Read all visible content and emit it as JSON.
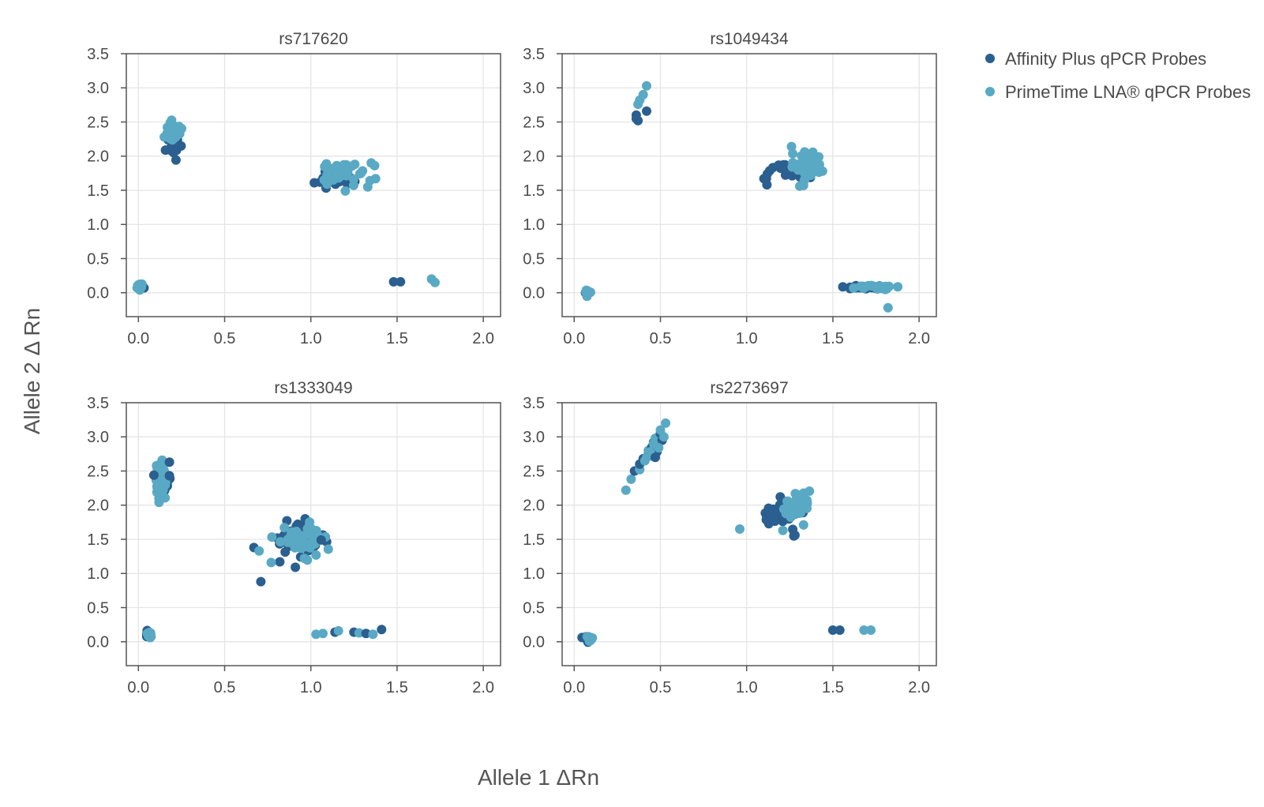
{
  "chart_data": {
    "type": "scatter",
    "xlabel": "Allele 1 ΔRn",
    "ylabel": "Allele 2 Δ Rn",
    "xlim": [
      -0.07,
      2.1
    ],
    "ylim": [
      -0.35,
      3.5
    ],
    "xticks": [
      "0.0",
      "0.5",
      "1.0",
      "1.5",
      "2.0"
    ],
    "yticks": [
      "3.5",
      "3.0",
      "2.5",
      "2.0",
      "1.5",
      "1.0",
      "0.5",
      "0.0"
    ],
    "grid": true,
    "legend_position": "top-right",
    "series": [
      {
        "name": "Affinity Plus qPCR Probes",
        "color": "#2a5f8f"
      },
      {
        "name": "PrimeTime LNA® qPCR Probes",
        "color": "#59a9c4"
      }
    ],
    "panels": [
      {
        "title": "rs717620",
        "clusters": [
          {
            "series": 0,
            "cx": 0.01,
            "cy": 0.09,
            "sx": 0.008,
            "sy": 0.03,
            "n": 10
          },
          {
            "series": 1,
            "cx": 0.01,
            "cy": 0.1,
            "sx": 0.008,
            "sy": 0.03,
            "n": 10
          },
          {
            "series": 0,
            "cx": 0.21,
            "cy": 2.17,
            "sx": 0.02,
            "sy": 0.09,
            "n": 32
          },
          {
            "series": 1,
            "cx": 0.2,
            "cy": 2.37,
            "sx": 0.02,
            "sy": 0.07,
            "n": 32
          },
          {
            "series": 0,
            "cx": 1.16,
            "cy": 1.7,
            "sx": 0.06,
            "sy": 0.06,
            "n": 26
          },
          {
            "series": 1,
            "cx": 1.21,
            "cy": 1.74,
            "sx": 0.06,
            "sy": 0.08,
            "n": 30
          }
        ],
        "points": [
          {
            "series": 0,
            "x": 1.48,
            "y": 0.16
          },
          {
            "series": 0,
            "x": 1.52,
            "y": 0.16
          },
          {
            "series": 1,
            "x": 1.7,
            "y": 0.2
          },
          {
            "series": 1,
            "x": 1.72,
            "y": 0.15
          },
          {
            "series": 1,
            "x": 1.35,
            "y": 1.9
          },
          {
            "series": 1,
            "x": 1.37,
            "y": 1.86
          },
          {
            "series": 0,
            "x": 1.02,
            "y": 1.61
          },
          {
            "series": 1,
            "x": 1.15,
            "y": 1.86
          },
          {
            "series": 1,
            "x": 1.2,
            "y": 1.49
          },
          {
            "series": 1,
            "x": 1.33,
            "y": 1.55
          },
          {
            "series": 1,
            "x": 0.15,
            "y": 2.28
          }
        ]
      },
      {
        "title": "rs1049434",
        "clusters": [
          {
            "series": 0,
            "cx": 0.08,
            "cy": 0.0,
            "sx": 0.01,
            "sy": 0.02,
            "n": 10
          },
          {
            "series": 1,
            "cx": 0.08,
            "cy": 0.01,
            "sx": 0.01,
            "sy": 0.02,
            "n": 10
          },
          {
            "series": 0,
            "cx": 1.25,
            "cy": 1.78,
            "sx": 0.07,
            "sy": 0.07,
            "n": 34
          },
          {
            "series": 1,
            "cx": 1.35,
            "cy": 1.87,
            "sx": 0.05,
            "sy": 0.1,
            "n": 36
          },
          {
            "series": 0,
            "cx": 1.7,
            "cy": 0.08,
            "sx": 0.06,
            "sy": 0.012,
            "n": 24
          },
          {
            "series": 1,
            "cx": 1.74,
            "cy": 0.08,
            "sx": 0.05,
            "sy": 0.015,
            "n": 24
          }
        ],
        "points": [
          {
            "series": 0,
            "x": 0.36,
            "y": 2.6
          },
          {
            "series": 0,
            "x": 0.37,
            "y": 2.52
          },
          {
            "series": 0,
            "x": 0.36,
            "y": 2.55
          },
          {
            "series": 0,
            "x": 0.42,
            "y": 2.66
          },
          {
            "series": 1,
            "x": 0.37,
            "y": 2.76
          },
          {
            "series": 1,
            "x": 0.38,
            "y": 2.82
          },
          {
            "series": 1,
            "x": 0.4,
            "y": 2.9
          },
          {
            "series": 1,
            "x": 0.42,
            "y": 3.03
          },
          {
            "series": 1,
            "x": 1.82,
            "y": -0.22
          },
          {
            "series": 1,
            "x": 1.26,
            "y": 2.14
          },
          {
            "series": 1,
            "x": 1.33,
            "y": 1.57
          },
          {
            "series": 0,
            "x": 1.1,
            "y": 1.67
          },
          {
            "series": 0,
            "x": 1.12,
            "y": 1.74
          },
          {
            "series": 1,
            "x": 1.62,
            "y": 0.07
          },
          {
            "series": 1,
            "x": 1.44,
            "y": 1.78
          }
        ]
      },
      {
        "title": "rs1333049",
        "clusters": [
          {
            "series": 0,
            "cx": 0.06,
            "cy": 0.1,
            "sx": 0.008,
            "sy": 0.03,
            "n": 10
          },
          {
            "series": 1,
            "cx": 0.06,
            "cy": 0.11,
            "sx": 0.008,
            "sy": 0.03,
            "n": 10
          },
          {
            "series": 0,
            "cx": 0.14,
            "cy": 2.35,
            "sx": 0.02,
            "sy": 0.1,
            "n": 22
          },
          {
            "series": 1,
            "cx": 0.13,
            "cy": 2.35,
            "sx": 0.015,
            "sy": 0.13,
            "n": 30
          },
          {
            "series": 0,
            "cx": 0.93,
            "cy": 1.5,
            "sx": 0.07,
            "sy": 0.12,
            "n": 40
          },
          {
            "series": 1,
            "cx": 0.93,
            "cy": 1.53,
            "sx": 0.07,
            "sy": 0.1,
            "n": 45
          }
        ],
        "points": [
          {
            "series": 0,
            "x": 0.18,
            "y": 2.63
          },
          {
            "series": 0,
            "x": 0.71,
            "y": 0.88
          },
          {
            "series": 0,
            "x": 0.67,
            "y": 1.38
          },
          {
            "series": 1,
            "x": 0.7,
            "y": 1.33
          },
          {
            "series": 0,
            "x": 0.82,
            "y": 1.17
          },
          {
            "series": 1,
            "x": 0.77,
            "y": 1.16
          },
          {
            "series": 0,
            "x": 0.91,
            "y": 1.09
          },
          {
            "series": 0,
            "x": 1.06,
            "y": 1.49
          },
          {
            "series": 1,
            "x": 1.03,
            "y": 1.27
          },
          {
            "series": 1,
            "x": 1.03,
            "y": 0.11
          },
          {
            "series": 1,
            "x": 1.07,
            "y": 0.12
          },
          {
            "series": 0,
            "x": 1.14,
            "y": 0.14
          },
          {
            "series": 1,
            "x": 1.16,
            "y": 0.16
          },
          {
            "series": 0,
            "x": 1.25,
            "y": 0.14
          },
          {
            "series": 1,
            "x": 1.28,
            "y": 0.13
          },
          {
            "series": 0,
            "x": 1.32,
            "y": 0.12
          },
          {
            "series": 1,
            "x": 1.36,
            "y": 0.11
          },
          {
            "series": 0,
            "x": 1.41,
            "y": 0.18
          },
          {
            "series": 1,
            "x": 0.12,
            "y": 2.04
          },
          {
            "series": 0,
            "x": 0.18,
            "y": 2.43
          },
          {
            "series": 0,
            "x": 0.09,
            "y": 2.44
          }
        ]
      },
      {
        "title": "rs2273697",
        "clusters": [
          {
            "series": 0,
            "cx": 0.08,
            "cy": 0.04,
            "sx": 0.01,
            "sy": 0.03,
            "n": 10
          },
          {
            "series": 1,
            "cx": 0.09,
            "cy": 0.05,
            "sx": 0.01,
            "sy": 0.03,
            "n": 10
          },
          {
            "series": 0,
            "cx": 1.2,
            "cy": 1.87,
            "sx": 0.05,
            "sy": 0.1,
            "n": 36
          },
          {
            "series": 1,
            "cx": 1.29,
            "cy": 2.0,
            "sx": 0.04,
            "sy": 0.08,
            "n": 40
          }
        ],
        "points": [
          {
            "series": 1,
            "x": 0.3,
            "y": 2.22
          },
          {
            "series": 1,
            "x": 0.33,
            "y": 2.38
          },
          {
            "series": 0,
            "x": 0.35,
            "y": 2.5
          },
          {
            "series": 1,
            "x": 0.38,
            "y": 2.52
          },
          {
            "series": 0,
            "x": 0.38,
            "y": 2.6
          },
          {
            "series": 0,
            "x": 0.4,
            "y": 2.68
          },
          {
            "series": 1,
            "x": 0.41,
            "y": 2.65
          },
          {
            "series": 0,
            "x": 0.43,
            "y": 2.75
          },
          {
            "series": 1,
            "x": 0.43,
            "y": 2.8
          },
          {
            "series": 0,
            "x": 0.45,
            "y": 2.85
          },
          {
            "series": 1,
            "x": 0.45,
            "y": 2.72
          },
          {
            "series": 0,
            "x": 0.46,
            "y": 2.92
          },
          {
            "series": 1,
            "x": 0.47,
            "y": 2.98
          },
          {
            "series": 0,
            "x": 0.48,
            "y": 2.78
          },
          {
            "series": 1,
            "x": 0.48,
            "y": 2.88
          },
          {
            "series": 0,
            "x": 0.5,
            "y": 3.05
          },
          {
            "series": 1,
            "x": 0.5,
            "y": 3.1
          },
          {
            "series": 0,
            "x": 0.51,
            "y": 2.95
          },
          {
            "series": 1,
            "x": 0.52,
            "y": 3.0
          },
          {
            "series": 1,
            "x": 0.53,
            "y": 3.2
          },
          {
            "series": 1,
            "x": 0.44,
            "y": 2.78
          },
          {
            "series": 1,
            "x": 0.49,
            "y": 2.84
          },
          {
            "series": 1,
            "x": 0.42,
            "y": 2.7
          },
          {
            "series": 0,
            "x": 0.47,
            "y": 2.7
          },
          {
            "series": 1,
            "x": 0.46,
            "y": 2.9
          },
          {
            "series": 1,
            "x": 0.96,
            "y": 1.65
          },
          {
            "series": 0,
            "x": 1.28,
            "y": 1.56
          },
          {
            "series": 0,
            "x": 1.5,
            "y": 0.17
          },
          {
            "series": 0,
            "x": 1.54,
            "y": 0.17
          },
          {
            "series": 1,
            "x": 1.68,
            "y": 0.17
          },
          {
            "series": 1,
            "x": 1.72,
            "y": 0.17
          },
          {
            "series": 1,
            "x": 1.33,
            "y": 1.71
          },
          {
            "series": 1,
            "x": 1.21,
            "y": 1.63
          }
        ]
      }
    ]
  }
}
